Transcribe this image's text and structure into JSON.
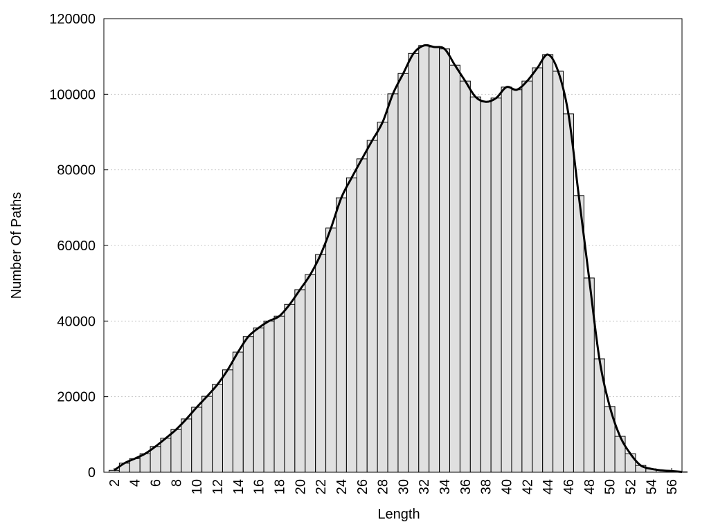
{
  "chart_data": {
    "type": "bar",
    "smooth": true,
    "xlabel": "Length",
    "ylabel": "Number Of Paths",
    "x": [
      2,
      3,
      4,
      5,
      6,
      7,
      8,
      9,
      10,
      11,
      12,
      13,
      14,
      15,
      16,
      17,
      18,
      19,
      20,
      21,
      22,
      23,
      24,
      25,
      26,
      27,
      28,
      29,
      30,
      31,
      32,
      33,
      34,
      35,
      36,
      37,
      38,
      39,
      40,
      41,
      42,
      43,
      44,
      45,
      46,
      47,
      48,
      49,
      50,
      51,
      52,
      53,
      54,
      55,
      56,
      57
    ],
    "values": [
      500,
      2400,
      3600,
      4900,
      6800,
      9000,
      11300,
      14100,
      17200,
      20100,
      23200,
      27100,
      31800,
      35900,
      38200,
      40000,
      41300,
      44400,
      48300,
      52300,
      57600,
      64600,
      72600,
      77900,
      82900,
      87800,
      92600,
      100100,
      105500,
      110800,
      112900,
      112500,
      112000,
      107700,
      103500,
      99300,
      98000,
      99000,
      101900,
      101200,
      103500,
      107000,
      110500,
      106100,
      94800,
      73200,
      51400,
      30000,
      17400,
      9500,
      4900,
      1800,
      900,
      500,
      300,
      100
    ],
    "color": "#e0e0e0",
    "line_color": "#000000",
    "xlim": [
      1,
      57
    ],
    "ylim": [
      0,
      120000
    ],
    "xticks": [
      2,
      4,
      6,
      8,
      10,
      12,
      14,
      16,
      18,
      20,
      22,
      24,
      26,
      28,
      30,
      32,
      34,
      36,
      38,
      40,
      42,
      44,
      46,
      48,
      50,
      52,
      54,
      56
    ],
    "yticks": [
      0,
      20000,
      40000,
      60000,
      80000,
      100000,
      120000
    ],
    "grid": true
  }
}
